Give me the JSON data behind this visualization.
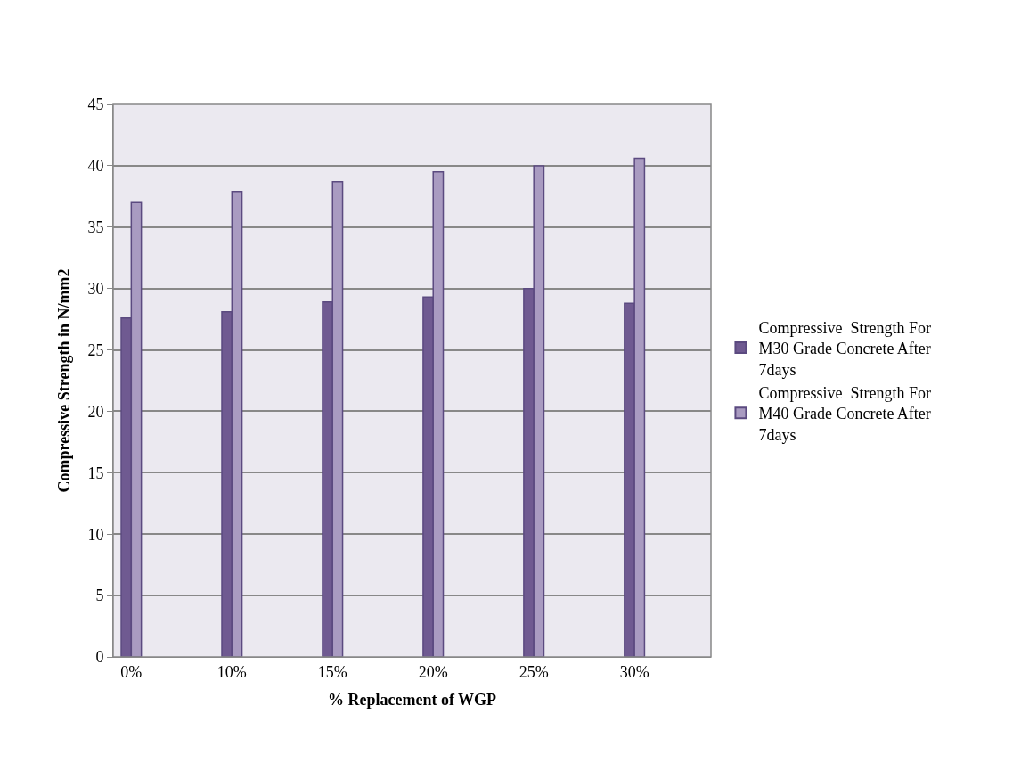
{
  "chart_data": {
    "type": "bar",
    "xlabel": "% Replacement of WGP",
    "ylabel": "Compressive Strength in N/mm2",
    "categories": [
      "0%",
      "10%",
      "15%",
      "20%",
      "25%",
      "30%"
    ],
    "series": [
      {
        "name": "Compressive  Strength For M30 Grade Concrete After 7days",
        "color": "#6f5a91",
        "values": [
          27.6,
          28.1,
          28.9,
          29.3,
          30.0,
          28.8
        ]
      },
      {
        "name": "Compressive  Strength For M40 Grade Concrete After 7days",
        "color": "#a99bc1",
        "values": [
          37.0,
          37.9,
          38.7,
          39.5,
          40.0,
          40.6
        ]
      }
    ],
    "ylim": [
      0,
      45
    ],
    "yticks": [
      0,
      5,
      10,
      15,
      20,
      25,
      30,
      35,
      40,
      45
    ],
    "grid": "y",
    "legend": "right"
  }
}
